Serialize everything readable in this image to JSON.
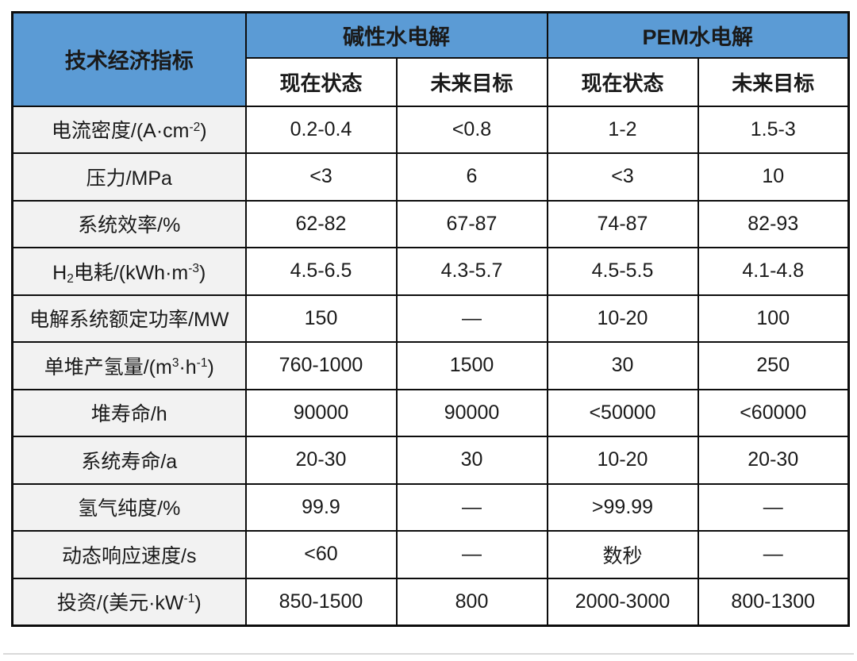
{
  "table": {
    "corner_header": "技术经济指标",
    "groups": [
      {
        "label": "碱性水电解"
      },
      {
        "label": "PEM水电解"
      }
    ],
    "sub_headers": [
      "现在状态",
      "未来目标",
      "现在状态",
      "未来目标"
    ],
    "rows": [
      {
        "label_parts": [
          {
            "t": "电流密度/(A·cm"
          },
          {
            "t": "-2",
            "sup": true
          },
          {
            "t": ")"
          }
        ],
        "values": [
          "0.2-0.4",
          "<0.8",
          "1-2",
          "1.5-3"
        ]
      },
      {
        "label_parts": [
          {
            "t": "压力/MPa"
          }
        ],
        "values": [
          "<3",
          "6",
          "<3",
          "10"
        ]
      },
      {
        "label_parts": [
          {
            "t": "系统效率/%"
          }
        ],
        "values": [
          "62-82",
          "67-87",
          "74-87",
          "82-93"
        ]
      },
      {
        "label_parts": [
          {
            "t": "H"
          },
          {
            "t": "2",
            "sub": true
          },
          {
            "t": "电耗/(kWh·m"
          },
          {
            "t": "-3",
            "sup": true
          },
          {
            "t": ")"
          }
        ],
        "values": [
          "4.5-6.5",
          "4.3-5.7",
          "4.5-5.5",
          "4.1-4.8"
        ]
      },
      {
        "label_parts": [
          {
            "t": "电解系统额定功率/MW"
          }
        ],
        "values": [
          "150",
          "—",
          "10-20",
          "100"
        ]
      },
      {
        "label_parts": [
          {
            "t": "单堆产氢量/(m"
          },
          {
            "t": "3",
            "sup": true
          },
          {
            "t": "·h"
          },
          {
            "t": "-1",
            "sup": true
          },
          {
            "t": ")"
          }
        ],
        "values": [
          "760-1000",
          "1500",
          "30",
          "250"
        ]
      },
      {
        "label_parts": [
          {
            "t": "堆寿命/h"
          }
        ],
        "values": [
          "90000",
          "90000",
          "<50000",
          "<60000"
        ]
      },
      {
        "label_parts": [
          {
            "t": "系统寿命/a"
          }
        ],
        "values": [
          "20-30",
          "30",
          "10-20",
          "20-30"
        ]
      },
      {
        "label_parts": [
          {
            "t": "氢气纯度/%"
          }
        ],
        "values": [
          "99.9",
          "—",
          ">99.99",
          "—"
        ]
      },
      {
        "label_parts": [
          {
            "t": "动态响应速度/s"
          }
        ],
        "values": [
          "<60",
          "—",
          "数秒",
          "—"
        ]
      },
      {
        "label_parts": [
          {
            "t": "投资/(美元·kW"
          },
          {
            "t": "-1",
            "sup": true
          },
          {
            "t": ")"
          }
        ],
        "values": [
          "850-1500",
          "800",
          "2000-3000",
          "800-1300"
        ]
      }
    ]
  },
  "colors": {
    "header_bg": "#5b9bd5",
    "header_text": "#ffffff",
    "label_bg": "#f2f2f2",
    "border": "#0d0d0d"
  }
}
